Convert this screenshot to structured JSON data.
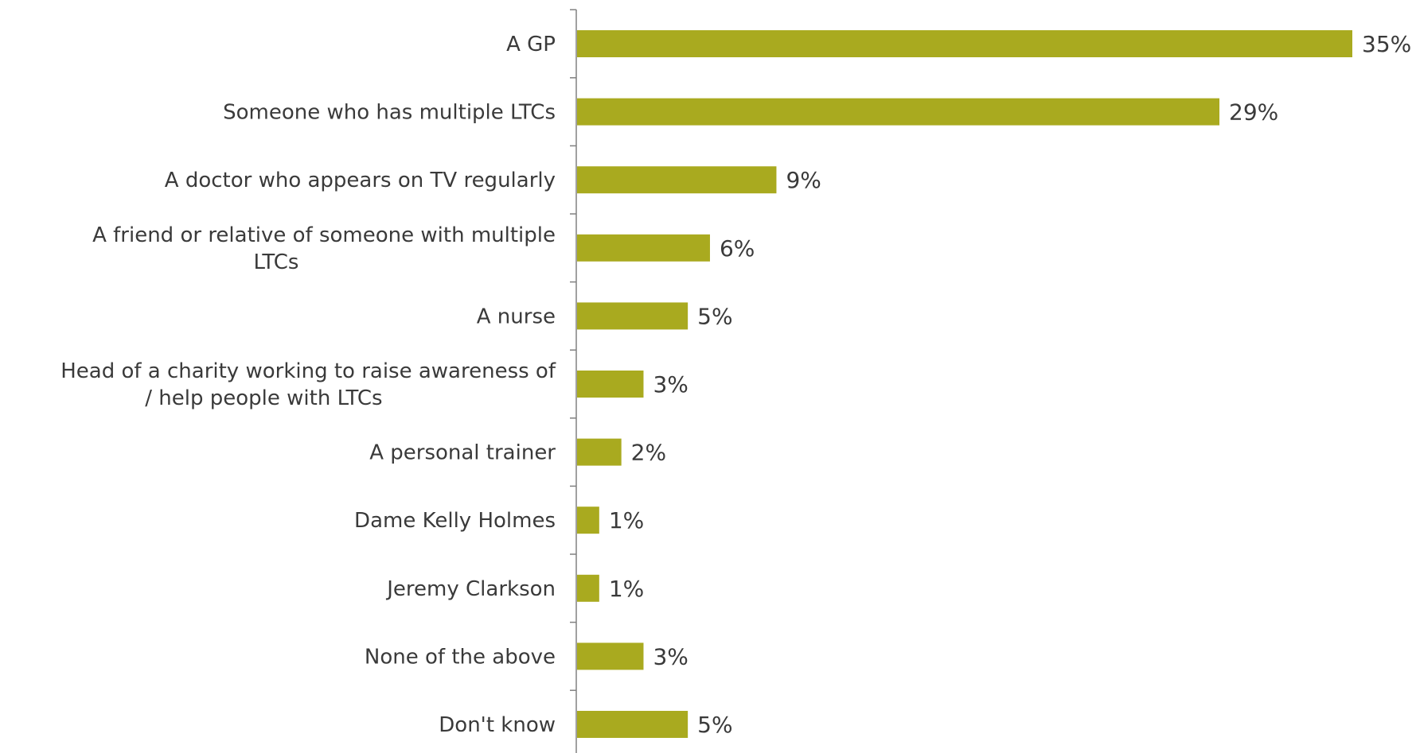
{
  "chart_data": {
    "type": "bar",
    "orientation": "horizontal",
    "categories": [
      [
        "A GP"
      ],
      [
        "Someone who has multiple LTCs"
      ],
      [
        "A doctor who appears on TV regularly"
      ],
      [
        "A friend or relative of someone with multiple",
        "LTCs"
      ],
      [
        "A nurse"
      ],
      [
        "Head of a charity working to raise awareness of",
        "/ help people with LTCs"
      ],
      [
        "A personal trainer"
      ],
      [
        "Dame Kelly Holmes"
      ],
      [
        "Jeremy Clarkson"
      ],
      [
        "None of the above"
      ],
      [
        "Don't know"
      ]
    ],
    "values": [
      35,
      29,
      9,
      6,
      5,
      3,
      2,
      1,
      1,
      3,
      5
    ],
    "value_labels": [
      "35%",
      "29%",
      "9%",
      "6%",
      "5%",
      "3%",
      "2%",
      "1%",
      "1%",
      "3%",
      "5%"
    ],
    "xlim": [
      0,
      35
    ],
    "grid": false,
    "legend": "none",
    "bar_color": "#a9aa1f",
    "axis_color": "#808080",
    "text_color": "#3a3a3a"
  }
}
